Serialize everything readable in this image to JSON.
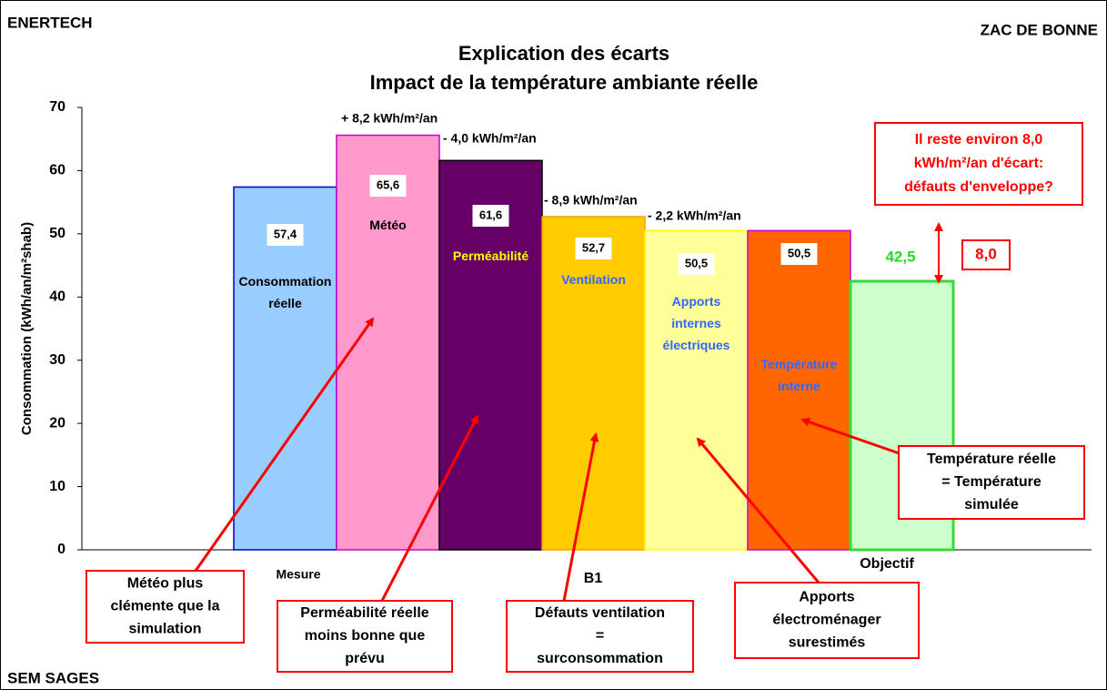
{
  "chart_data": {
    "type": "bar",
    "corner_texts": [
      "ENERTECH",
      "ZAC DE BONNE",
      "SEM SAGES"
    ],
    "title": [
      "Explication des écarts",
      "Impact de la température ambiante réelle"
    ],
    "y_label": "Consommation (kWh/an/m²shab)",
    "ylim": [
      0,
      70
    ],
    "yticks": [
      0,
      10,
      20,
      30,
      40,
      50,
      60,
      70
    ],
    "group_labels": [
      "Mesure",
      "B1",
      "Objectif"
    ],
    "categories": [
      "Consommation réelle",
      "Météo",
      "Perméabilité",
      "Ventilation",
      "Apports internes électriques",
      "Température interne",
      null
    ],
    "values": [
      57.4,
      65.6,
      61.6,
      52.7,
      50.5,
      50.5,
      42.5
    ],
    "value_labels": [
      "57,4",
      "65,6",
      "61,6",
      "52,7",
      "50,5",
      "50,5",
      "42,5"
    ],
    "colors": [
      "#99ccff",
      "#ff99cc",
      "#660066",
      "#ffcc00",
      "#ffff99",
      "#ff6600",
      "#ccffcc"
    ],
    "deltas": [
      "+ 8,2 kWh/m²/an",
      "- 4,0 kWh/m²/an",
      "- 8,9 kWh/m²/an",
      "- 2,2 kWh/m²/an"
    ],
    "gap_label": "8,0",
    "gap_note": [
      "Il reste environ 8,0",
      "kWh/m²/an d'écart:",
      "défauts d'enveloppe?"
    ],
    "callouts": [
      [
        "Météo plus",
        "clémente que la",
        "simulation"
      ],
      [
        "Perméabilité réelle",
        "moins bonne que",
        "prévu"
      ],
      [
        "Défauts ventilation",
        "=",
        "surconsommation"
      ],
      [
        "Apports",
        "électroménager",
        "surestimés"
      ],
      [
        "Température réelle",
        "= Température",
        "simulée"
      ]
    ]
  }
}
